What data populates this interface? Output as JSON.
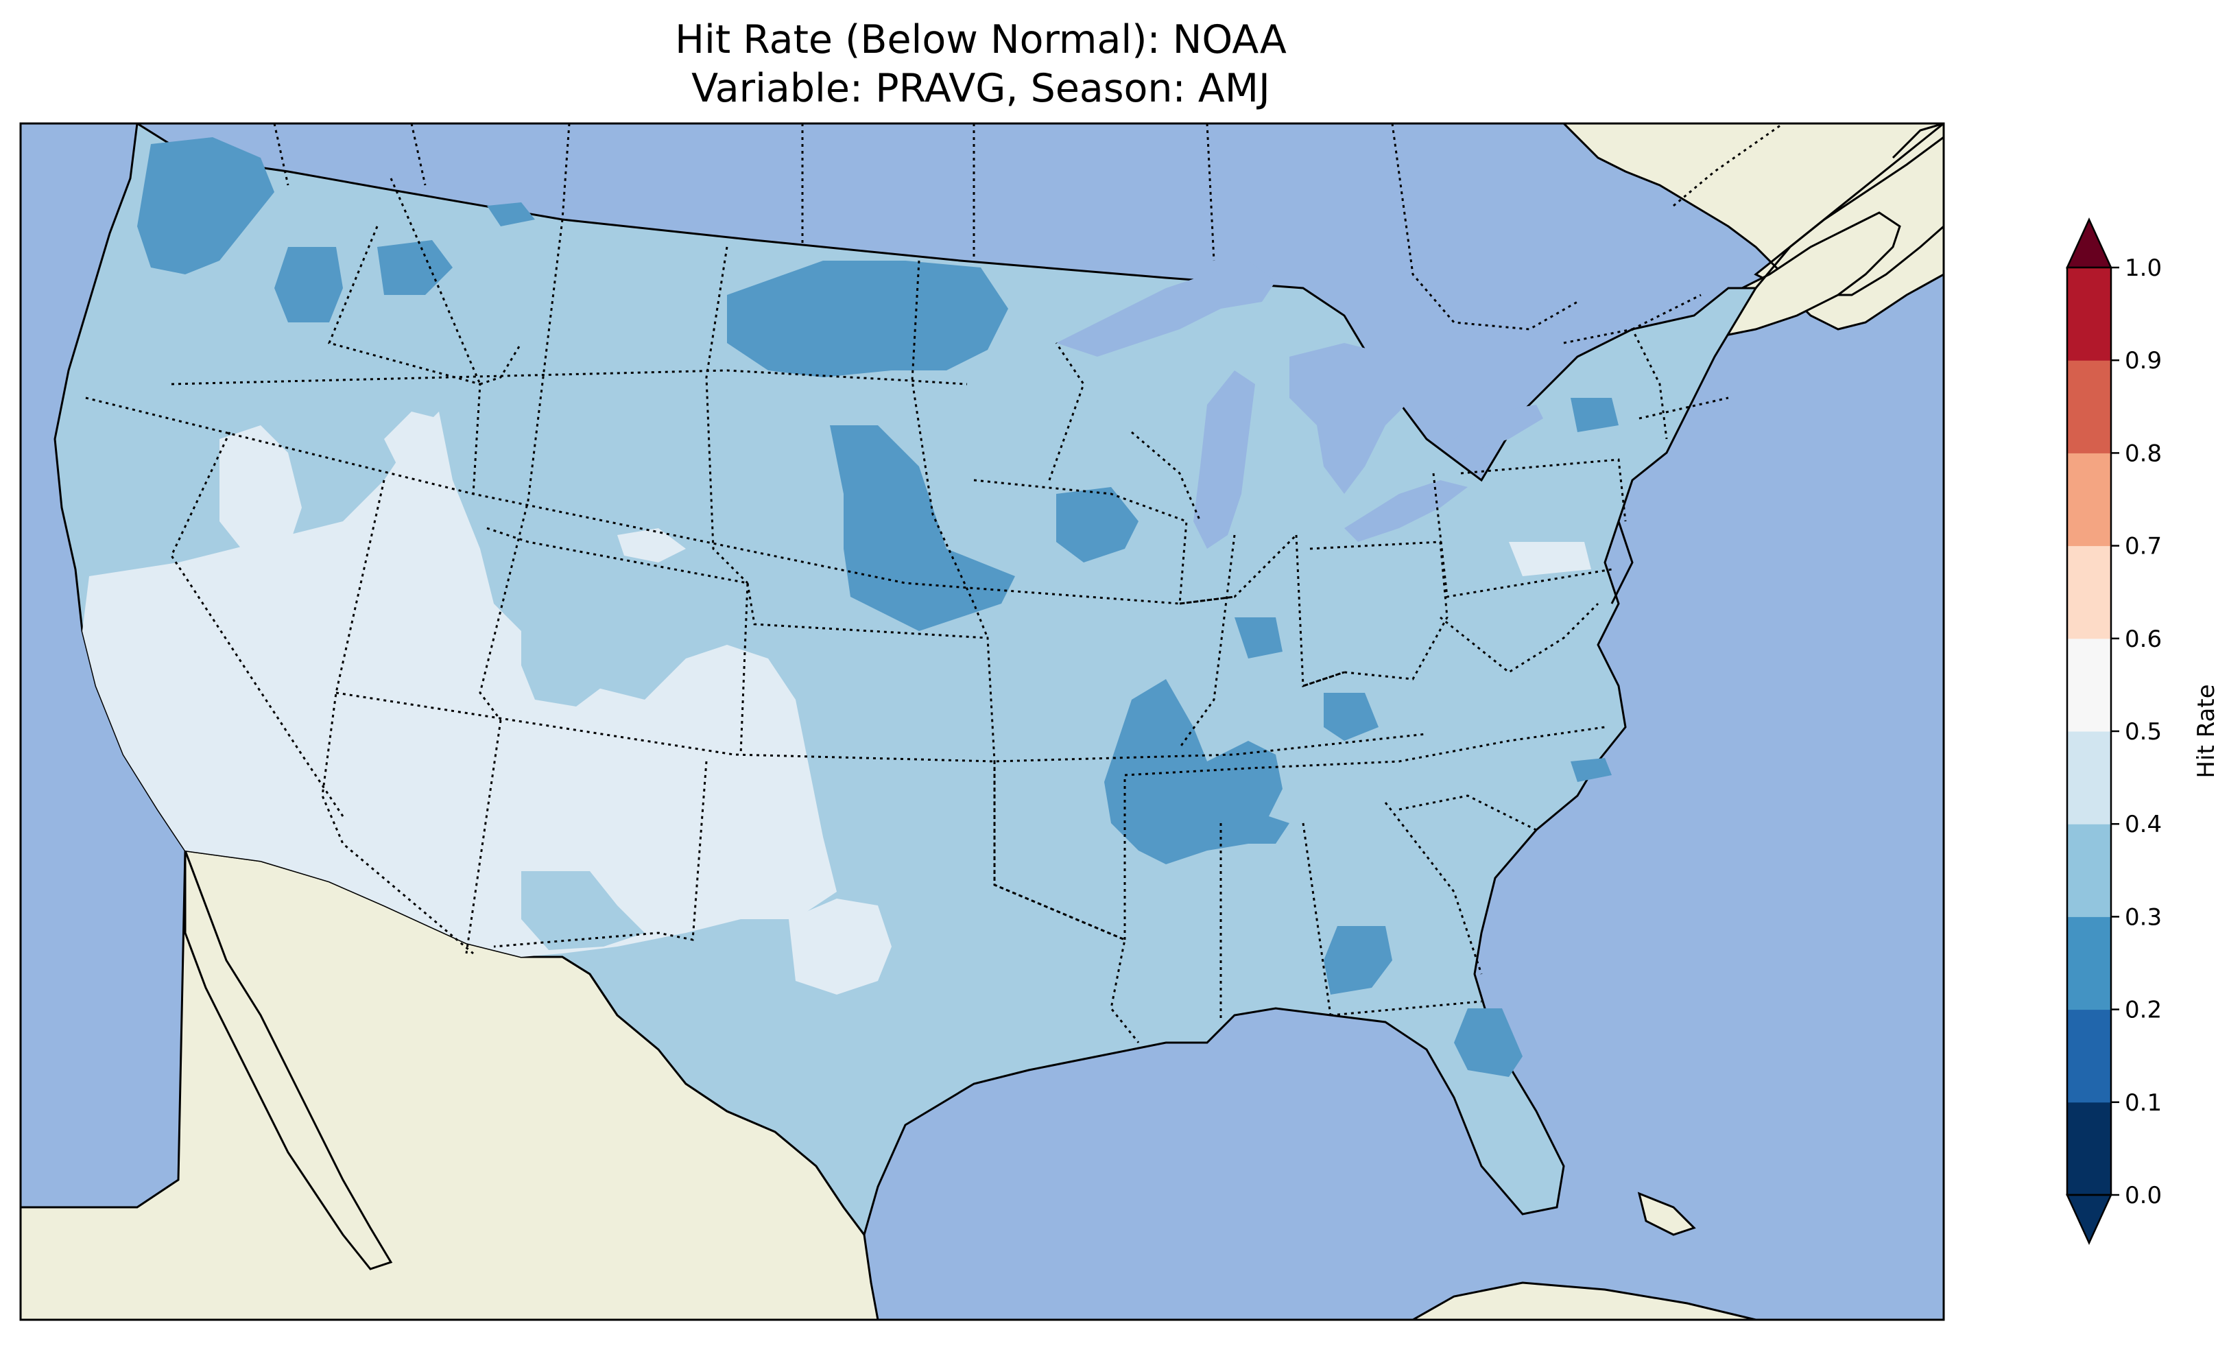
{
  "title": {
    "line1": "Hit Rate (Below Normal): NOAA",
    "line2": "Variable: PRAVG, Season: AMJ"
  },
  "colors": {
    "ocean": "#97b6e1",
    "land": "#efefdb",
    "frame": "#000000"
  },
  "colorbar": {
    "label": "Hit Rate",
    "extend": "both",
    "ticks": [
      "0.0",
      "0.1",
      "0.2",
      "0.3",
      "0.4",
      "0.5",
      "0.6",
      "0.7",
      "0.8",
      "0.9",
      "1.0"
    ],
    "bin_colors": [
      "#053061",
      "#2166ac",
      "#4393c3",
      "#92c5de",
      "#d1e5f0",
      "#f7f7f7",
      "#fddbc7",
      "#f4a582",
      "#d6604d",
      "#b2182b",
      "#67001f"
    ],
    "under_color": "#053061",
    "over_color": "#67001f"
  },
  "map_legend": {
    "band_0.2_0.3": "#5499c6",
    "band_0.3_0.4": "#a6cde2",
    "band_0.4_0.5": "#e1ecf4"
  }
}
